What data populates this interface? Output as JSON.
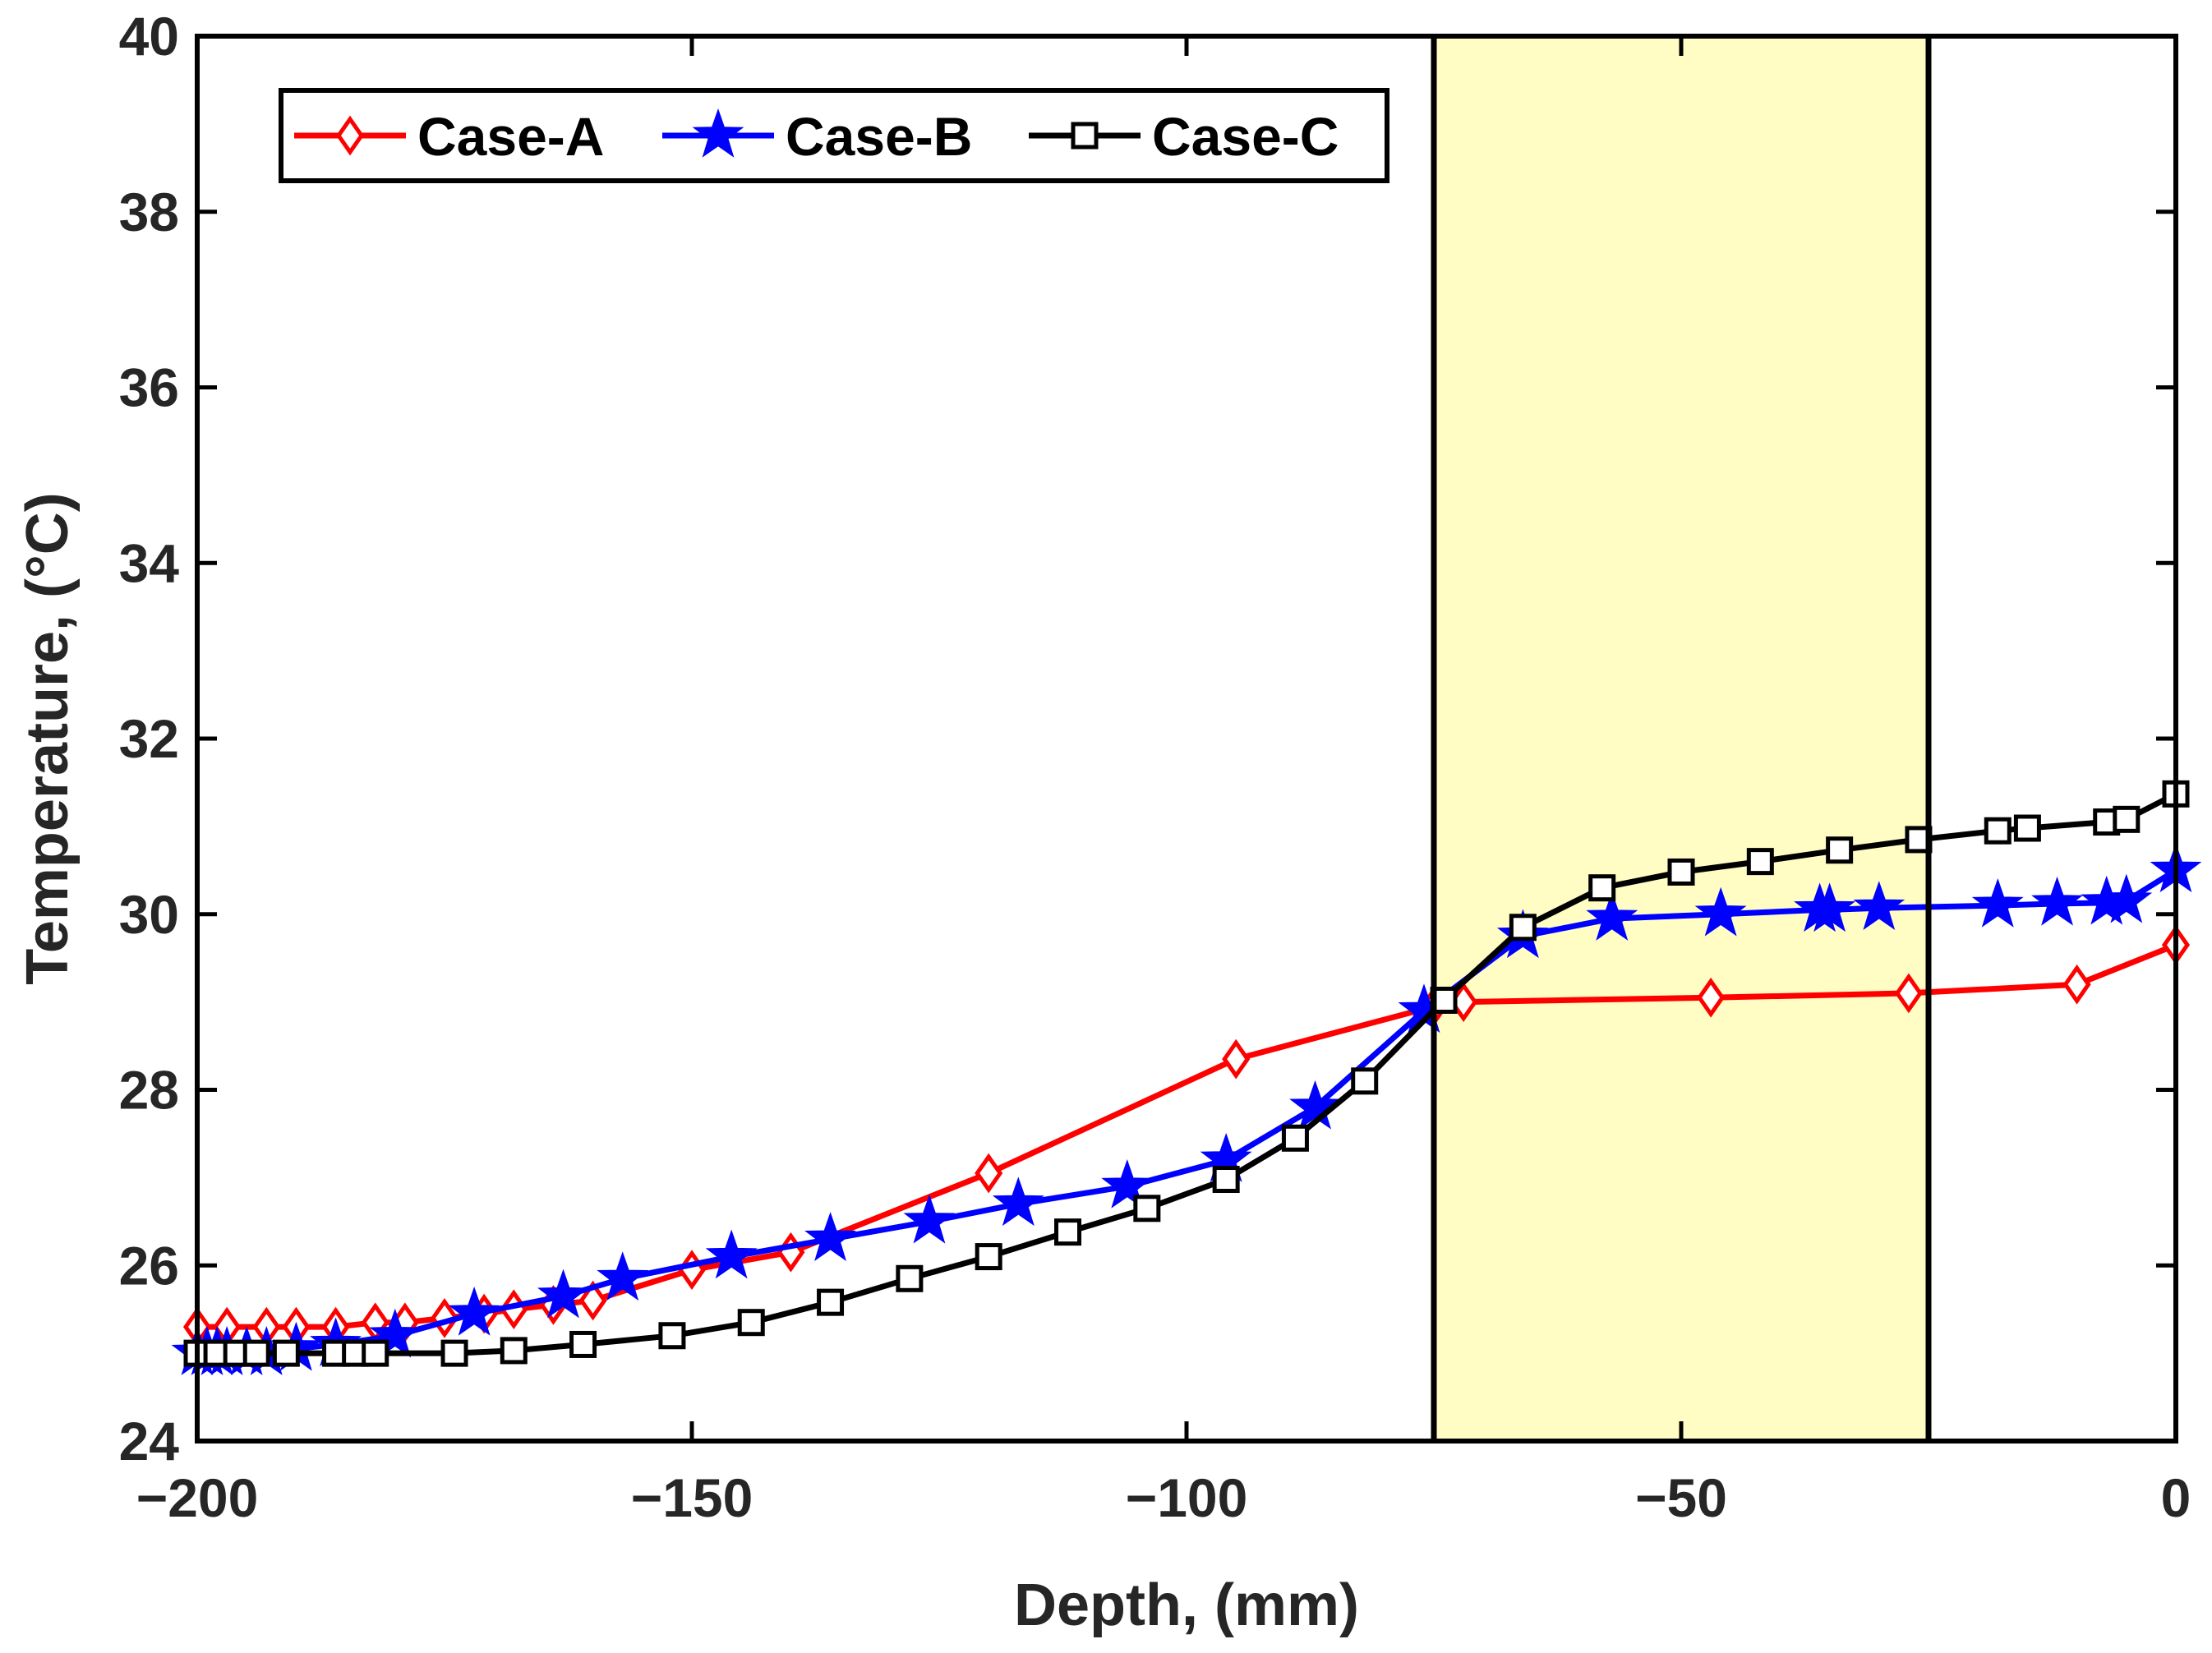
{
  "chart_data": {
    "type": "line",
    "title": "",
    "xlabel": "Depth, (mm)",
    "ylabel": "Temperature, (°C)",
    "xlim": [
      -200,
      0
    ],
    "ylim": [
      24,
      40
    ],
    "xticks": [
      -200,
      -150,
      -100,
      -50,
      0
    ],
    "xtick_labels": [
      "−200",
      "−150",
      "−100",
      "−50",
      "0"
    ],
    "yticks": [
      24,
      26,
      28,
      30,
      32,
      34,
      36,
      38,
      40
    ],
    "ytick_labels": [
      "24",
      "26",
      "28",
      "30",
      "32",
      "34",
      "36",
      "38",
      "40"
    ],
    "grid": false,
    "legend_position": "top-left",
    "shaded_region": {
      "x": [
        -75,
        -25
      ],
      "color": "#fffcc4",
      "edge_color": "#000000"
    },
    "series": [
      {
        "name": "Case-A",
        "color": "#ff0000",
        "marker": "diamond",
        "x": [
          -200,
          -197,
          -193,
          -190,
          -186,
          -182,
          -179,
          -175,
          -171,
          -168,
          -164,
          -160,
          -150,
          -140,
          -120,
          -95,
          -75,
          -72,
          -47,
          -27,
          -10,
          0
        ],
        "y": [
          25.3,
          25.3,
          25.3,
          25.3,
          25.3,
          25.35,
          25.35,
          25.4,
          25.45,
          25.5,
          25.55,
          25.6,
          25.95,
          26.15,
          27.05,
          28.35,
          28.95,
          29.0,
          29.05,
          29.1,
          29.2,
          29.65
        ]
      },
      {
        "name": "Case-B",
        "color": "#0000ff",
        "marker": "star",
        "x": [
          -200,
          -199,
          -198,
          -197,
          -195,
          -193,
          -190,
          -186,
          -180,
          -172,
          -163,
          -157,
          -146,
          -136,
          -126,
          -117,
          -106,
          -96,
          -87,
          -76,
          -66,
          -57,
          -46,
          -36,
          -35,
          -30,
          -18,
          -12,
          -7,
          -5,
          0
        ],
        "y": [
          25.0,
          25.0,
          25.0,
          25.0,
          25.0,
          25.0,
          25.05,
          25.1,
          25.2,
          25.45,
          25.65,
          25.85,
          26.1,
          26.3,
          26.5,
          26.7,
          26.9,
          27.2,
          27.8,
          28.9,
          29.75,
          29.95,
          30.0,
          30.05,
          30.05,
          30.07,
          30.1,
          30.12,
          30.13,
          30.15,
          30.5
        ]
      },
      {
        "name": "Case-C",
        "color": "#000000",
        "marker": "square",
        "x": [
          -200,
          -198,
          -196,
          -194,
          -191,
          -186,
          -184,
          -182,
          -174,
          -168,
          -161,
          -152,
          -144,
          -136,
          -128,
          -120,
          -112,
          -104,
          -96,
          -89,
          -82,
          -74,
          -66,
          -58,
          -50,
          -42,
          -34,
          -26,
          -18,
          -15,
          -7,
          -5,
          0
        ],
        "y": [
          25.0,
          25.0,
          25.0,
          25.0,
          25.0,
          25.0,
          25.0,
          25.0,
          25.0,
          25.03,
          25.1,
          25.2,
          25.35,
          25.58,
          25.85,
          26.1,
          26.38,
          26.65,
          26.98,
          27.45,
          28.1,
          29.02,
          29.85,
          30.3,
          30.48,
          30.6,
          30.73,
          30.85,
          30.95,
          30.98,
          31.05,
          31.08,
          31.37
        ]
      }
    ]
  }
}
